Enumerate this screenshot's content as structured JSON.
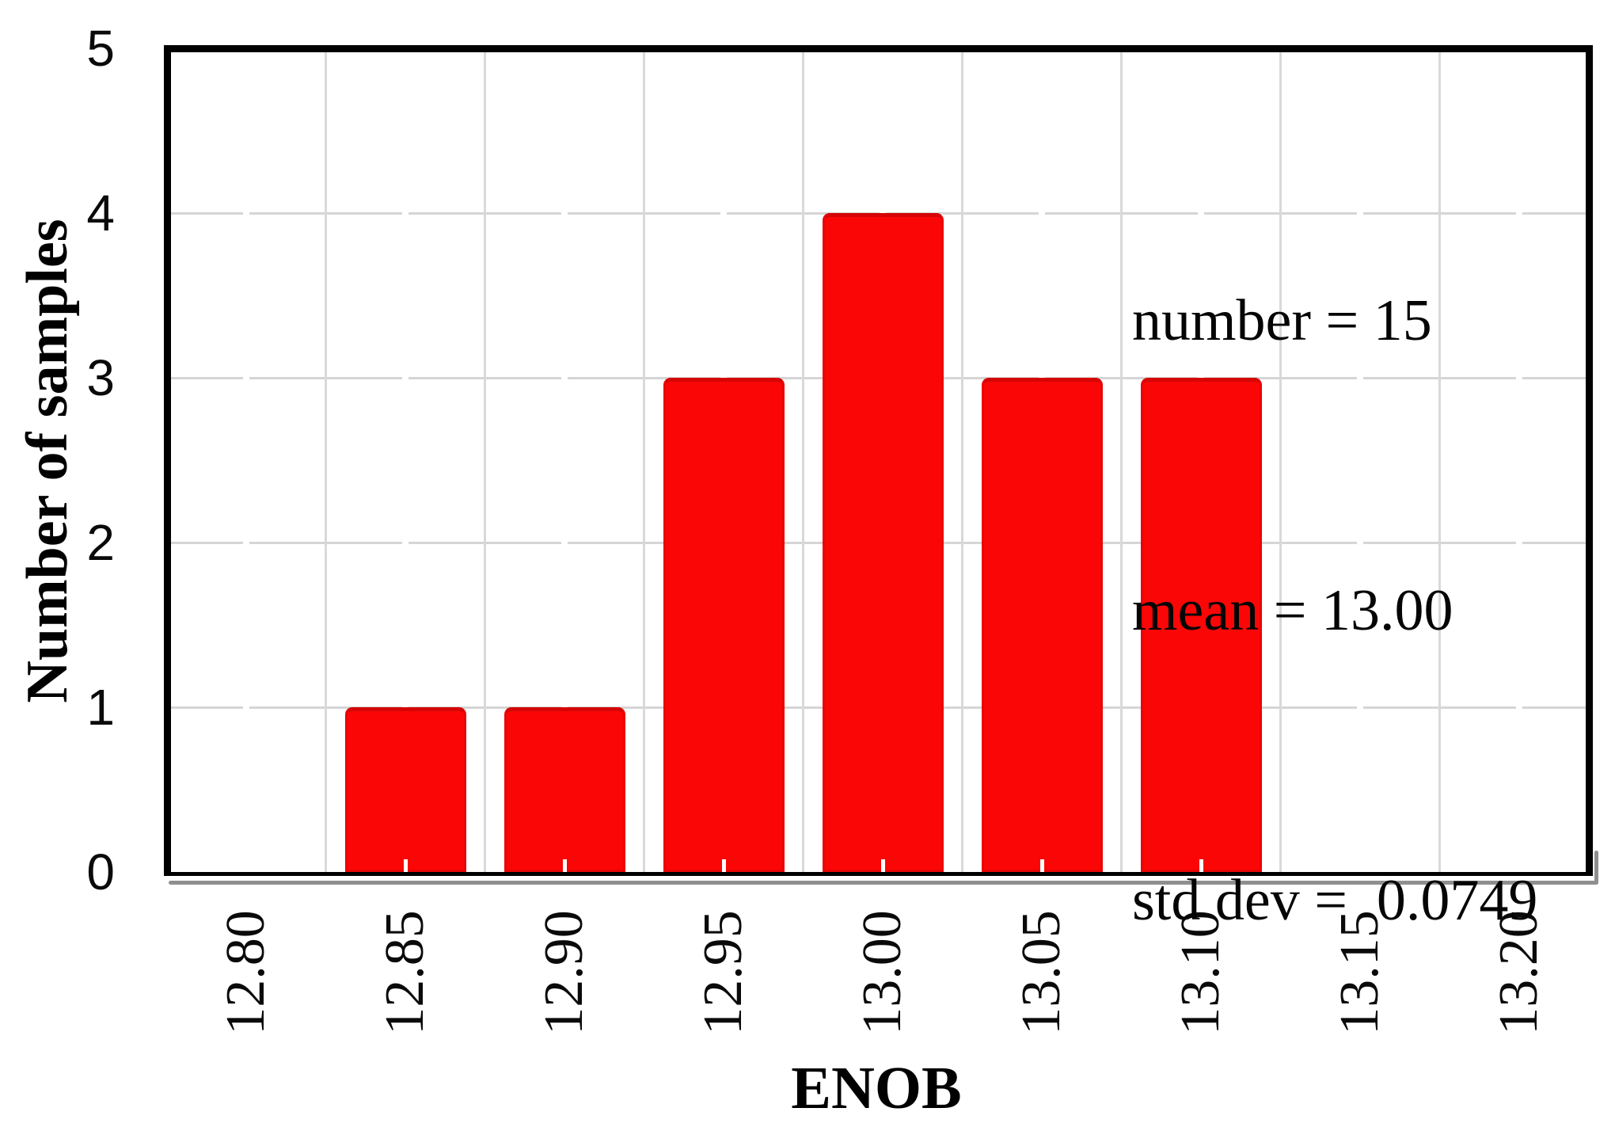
{
  "figure": {
    "x_axis_title": "ENOB",
    "y_axis_title": "Number of samples",
    "annotation": {
      "lines": [
        "number = 15",
        "mean = 13.00",
        "std dev =  0.0749"
      ]
    },
    "colors": {
      "bar_fill": "#fb0606",
      "bar_edge": "#d50505",
      "gridline": "#d9d9d9",
      "frame": "#000000",
      "frame_shadow": "#8f8f8f",
      "background": "#ffffff"
    }
  },
  "chart_data": {
    "type": "bar",
    "title": "",
    "xlabel": "ENOB",
    "ylabel": "Number of samples",
    "categories": [
      12.85,
      12.9,
      12.95,
      13.0,
      13.05,
      13.1
    ],
    "values": [
      1,
      1,
      3,
      4,
      3,
      3
    ],
    "x_tick_labels": [
      "12.80",
      "12.85",
      "12.90",
      "12.95",
      "13.00",
      "13.05",
      "13.10",
      "13.15",
      "13.20"
    ],
    "y_tick_labels": [
      "0",
      "1",
      "2",
      "3",
      "4",
      "5"
    ],
    "xlim": [
      12.7735,
      13.2225
    ],
    "ylim": [
      0,
      5
    ],
    "bin_width": 0.05,
    "grid": true,
    "gridlines_vertical_at": "bin edges (12.825 to 13.175 step 0.05)",
    "legend_position": "none",
    "annotations": [
      "number = 15",
      "mean = 13.00",
      "std dev =  0.0749"
    ],
    "stats": {
      "number": 15,
      "mean": 13.0,
      "std_dev": 0.0749
    }
  }
}
